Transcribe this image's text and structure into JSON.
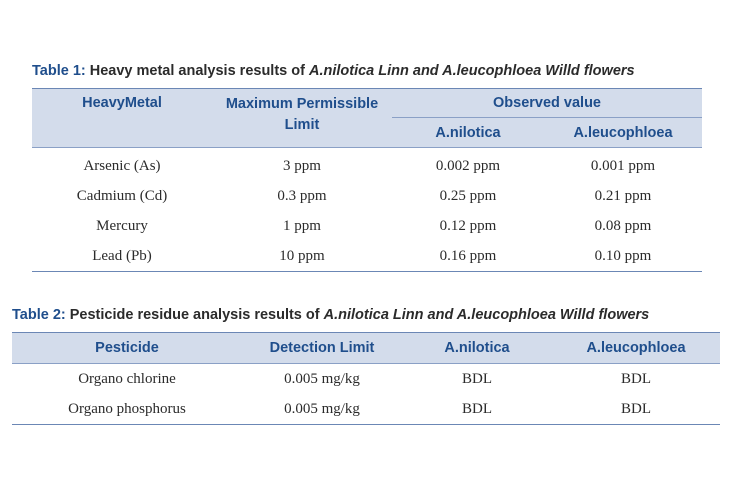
{
  "table1": {
    "caption_num": "Table 1:",
    "caption_lead": " Heavy metal analysis results of ",
    "caption_em": "A.nilotica Linn and A.leucophloea Willd",
    "caption_tail": "  flowers",
    "headers": {
      "metal": "HeavyMetal",
      "limit": "Maximum Permissible Limit",
      "observed": "Observed value",
      "nilotica": "A.nilotica",
      "leucophloea": "A.leucophloea"
    },
    "rows": [
      {
        "metal": "Arsenic (As)",
        "limit": "3 ppm",
        "nilotica": "0.002 ppm",
        "leucophloea": "0.001 ppm"
      },
      {
        "metal": "Cadmium (Cd)",
        "limit": "0.3 ppm",
        "nilotica": "0.25 ppm",
        "leucophloea": "0.21 ppm"
      },
      {
        "metal": "Mercury",
        "limit": "1 ppm",
        "nilotica": "0.12 ppm",
        "leucophloea": "0.08 ppm"
      },
      {
        "metal": "Lead (Pb)",
        "limit": "10 ppm",
        "nilotica": "0.16 ppm",
        "leucophloea": "0.10 ppm"
      }
    ]
  },
  "table2": {
    "caption_num": "Table 2:",
    "caption_lead": " Pesticide residue analysis results of ",
    "caption_em": "A.nilotica Linn and A.leucophloea Willd",
    "caption_tail": "  flowers",
    "headers": {
      "pesticide": "Pesticide",
      "detection": "Detection Limit",
      "nilotica": "A.nilotica",
      "leucophloea": "A.leucophloea"
    },
    "rows": [
      {
        "pesticide": "Organo chlorine",
        "detection": "0.005 mg/kg",
        "nilotica": "BDL",
        "leucophloea": "BDL"
      },
      {
        "pesticide": "Organo phosphorus",
        "detection": "0.005 mg/kg",
        "nilotica": "BDL",
        "leucophloea": "BDL"
      }
    ]
  }
}
